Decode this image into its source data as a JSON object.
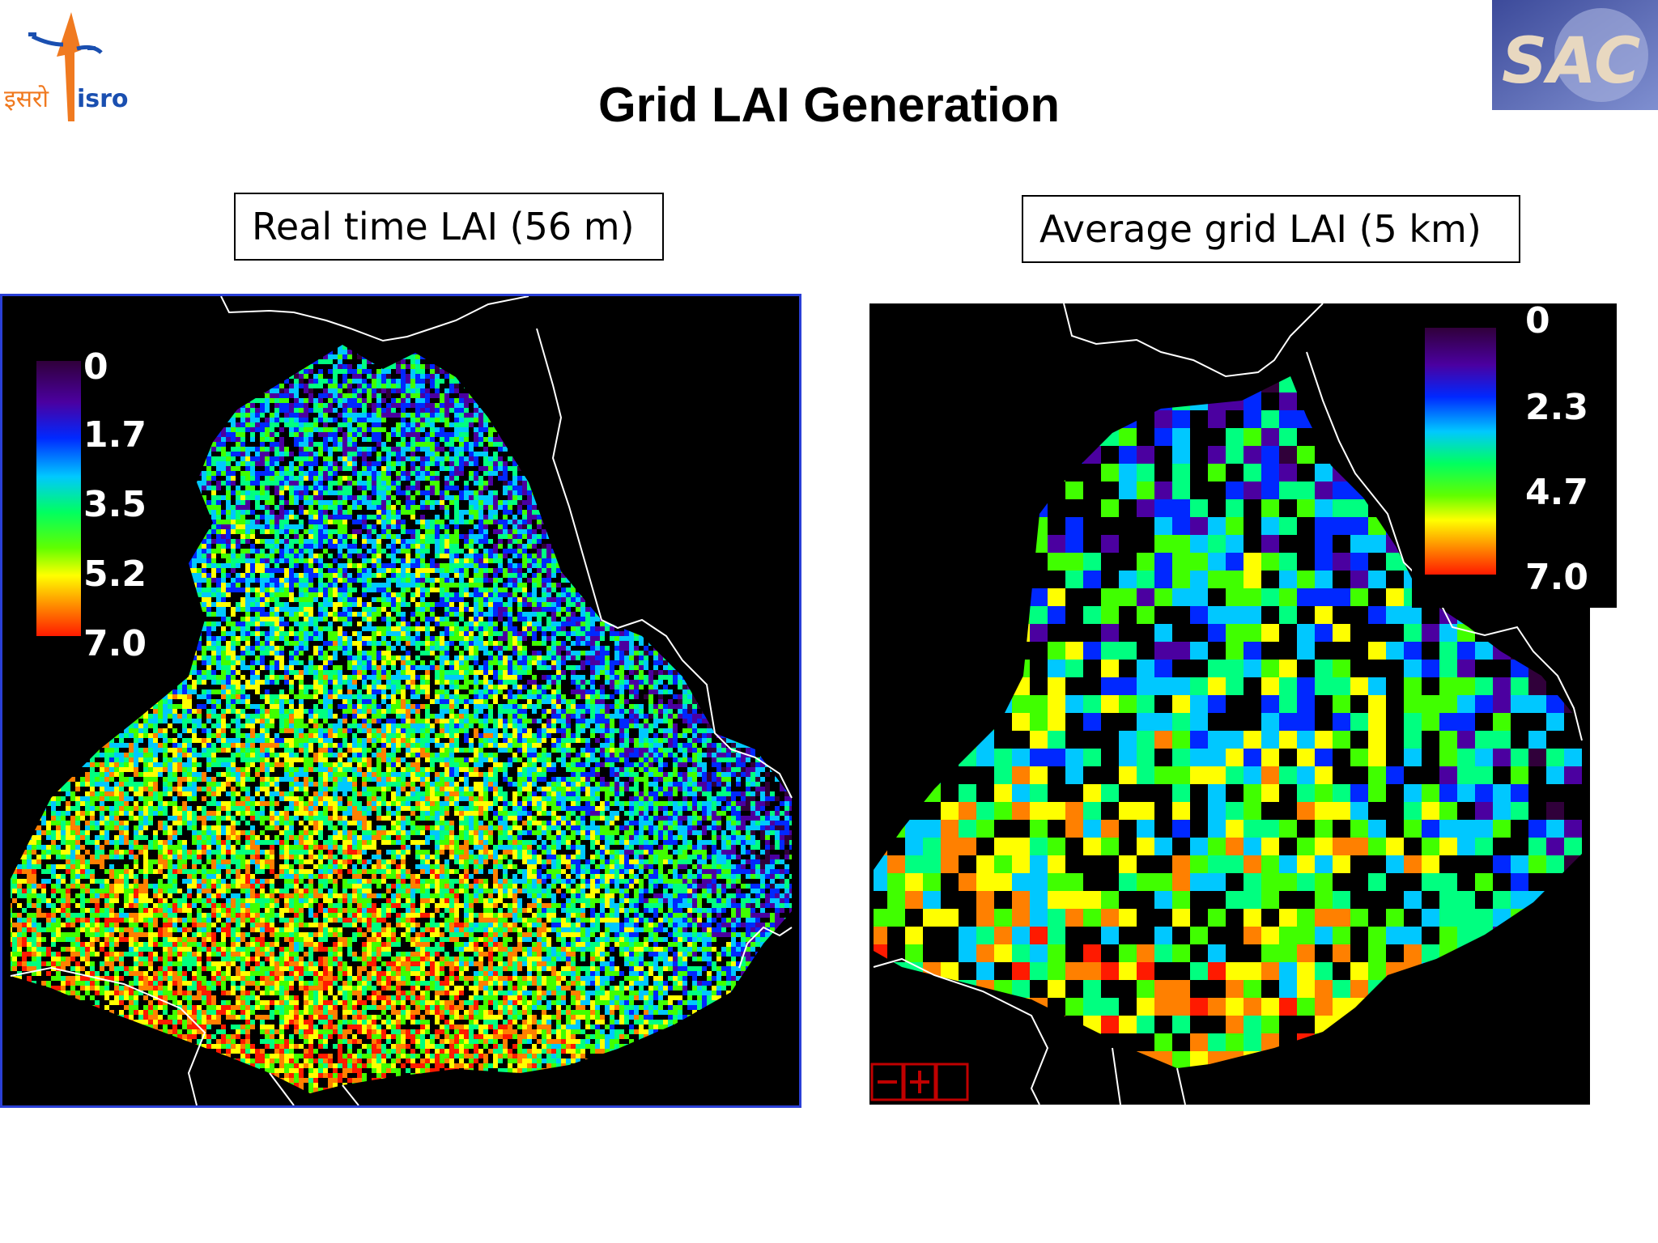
{
  "slide": {
    "title": "Grid LAI Generation"
  },
  "logos": {
    "left": {
      "icon": "isro-logo-icon",
      "text_devanagari": "इसरो",
      "text_latin": "isro"
    },
    "right": {
      "icon": "sac-logo-icon",
      "text": "SAC"
    }
  },
  "panels": {
    "left": {
      "caption": "Real time LAI (56 m)",
      "legend": {
        "labels": [
          "0",
          "1.7",
          "3.5",
          "5.2",
          "7.0"
        ]
      }
    },
    "right": {
      "caption": "Average grid LAI (5 km)",
      "legend": {
        "labels": [
          "0",
          "2.3",
          "4.7",
          "7.0"
        ]
      }
    }
  },
  "colors": {
    "background": "#ffffff",
    "map_background": "#000000",
    "left_frame": "#2a3fd6",
    "boundary": "#ffffff",
    "colorscale": [
      "#30003a",
      "#4b00a0",
      "#0028ff",
      "#00c8ff",
      "#00ff80",
      "#40ff00",
      "#ffff00",
      "#ff8000",
      "#ff1a00"
    ]
  }
}
